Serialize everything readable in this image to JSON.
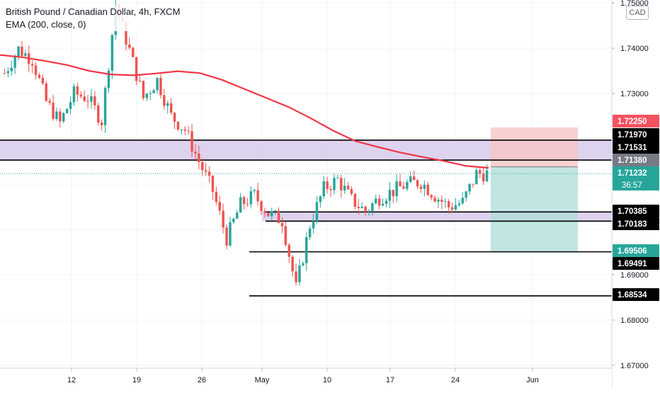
{
  "header": {
    "symbol": "British Pound / Canadian Dollar, 4h, FXCM",
    "indicator": "EMA (200, close, 0)"
  },
  "currency_badge": "CAD",
  "countdown": "36:57",
  "colors": {
    "up": "#26a69a",
    "down": "#ef5350",
    "ema": "#f23645",
    "zone": "#d1c4e9",
    "stop": "#f7c6c6",
    "target": "#b2dfdb",
    "grid": "#f0f3fa"
  },
  "chart_data": {
    "type": "candlestick",
    "title": "British Pound / Canadian Dollar, 4h, FXCM",
    "indicator": "EMA (200, close, 0)",
    "ylim": [
      1.67,
      1.75
    ],
    "y_ticks": [
      "1.75000",
      "1.74000",
      "1.73000",
      "1.69000",
      "1.68000",
      "1.67000"
    ],
    "x_ticks": [
      "12",
      "19",
      "26",
      "May",
      "10",
      "17",
      "24",
      "Jun"
    ],
    "price_labels": [
      {
        "value": 1.7225,
        "text": "1.72250",
        "style": "stop"
      },
      {
        "value": 1.7197,
        "text": "1.71970",
        "style": "level"
      },
      {
        "value": 1.71531,
        "text": "1.71531",
        "style": "level"
      },
      {
        "value": 1.7138,
        "text": "1.71380",
        "style": "entry"
      },
      {
        "value": 1.71232,
        "text": "1.71232",
        "style": "last"
      },
      {
        "value": 1.70385,
        "text": "1.70385",
        "style": "level"
      },
      {
        "value": 1.70183,
        "text": "1.70183",
        "style": "level"
      },
      {
        "value": 1.69506,
        "text": "1.69506",
        "style": "target"
      },
      {
        "value": 1.69491,
        "text": "1.69491",
        "style": "level"
      },
      {
        "value": 1.68534,
        "text": "1.68534",
        "style": "level"
      }
    ],
    "horizontal_levels": [
      {
        "value": 1.7197,
        "from": "start",
        "to": "end"
      },
      {
        "value": 1.71531,
        "from": "start",
        "to": "end"
      },
      {
        "value": 1.70385,
        "from": "May",
        "to": "end"
      },
      {
        "value": 1.70183,
        "from": "May",
        "to": "end"
      },
      {
        "value": 1.69506,
        "from": "29-apr",
        "to": "end"
      },
      {
        "value": 1.68534,
        "from": "29-apr",
        "to": "end"
      }
    ],
    "zones": [
      {
        "from": 1.71531,
        "to": 1.7197
      },
      {
        "from": 1.70183,
        "to": 1.70385
      }
    ],
    "position": {
      "side": "short",
      "entry": 1.7138,
      "stop": 1.7225,
      "target": 1.69506
    },
    "ema_series": [
      1.7385,
      1.738,
      1.7372,
      1.7363,
      1.735,
      1.7342,
      1.734,
      1.7344,
      1.7349,
      1.7345,
      1.733,
      1.731,
      1.729,
      1.727,
      1.7245,
      1.7218,
      1.7195,
      1.7182,
      1.717,
      1.716,
      1.7151,
      1.714,
      1.7136
    ],
    "close_series": [
      1.7345,
      1.7398,
      1.7375,
      1.7282,
      1.7235,
      1.73,
      1.729,
      1.724,
      1.7495,
      1.7395,
      1.729,
      1.733,
      1.725,
      1.722,
      1.715,
      1.7085,
      1.698,
      1.7055,
      1.7075,
      1.7035,
      1.702,
      1.687,
      1.701,
      1.709,
      1.711,
      1.7065,
      1.704,
      1.707,
      1.7085,
      1.71,
      1.7105,
      1.7075,
      1.705,
      1.706,
      1.7123
    ]
  }
}
